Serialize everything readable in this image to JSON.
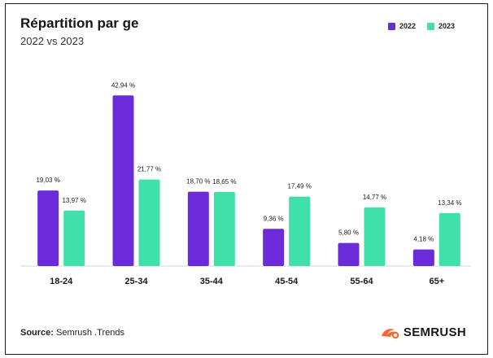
{
  "header": {
    "title": "Répartition par ge",
    "subtitle": "2022 vs 2023"
  },
  "legend": [
    {
      "label": "2022",
      "color": "#6c2bd9"
    },
    {
      "label": "2023",
      "color": "#40e0aa"
    }
  ],
  "footer": {
    "source_label": "Source:",
    "source_value": "Semrush .Trends",
    "brand": "SEMRUSH",
    "brand_icon": "semrush-flame-icon",
    "brand_color": "#ff642d"
  },
  "chart_data": {
    "type": "bar",
    "categories": [
      "18-24",
      "25-34",
      "35-44",
      "45-54",
      "55-64",
      "65+"
    ],
    "series": [
      {
        "name": "2022",
        "values": [
          19.03,
          42.94,
          18.7,
          9.36,
          5.8,
          4.18
        ],
        "labels": [
          "19,03 %",
          "42,94 %",
          "18,70 %",
          "9,36 %",
          "5,80 %",
          "4,18 %"
        ],
        "color": "#6c2bd9"
      },
      {
        "name": "2023",
        "values": [
          13.97,
          21.77,
          18.65,
          17.49,
          14.77,
          13.34
        ],
        "labels": [
          "13,97 %",
          "21,77 %",
          "18,65 %",
          "17,49 %",
          "14,77 %",
          "13,34 %"
        ],
        "color": "#40e0aa"
      }
    ],
    "title": "Répartition par ge",
    "subtitle": "2022 vs 2023",
    "xlabel": "",
    "ylabel": "",
    "ylim": [
      0,
      45
    ],
    "grid": false,
    "legend_position": "top-right"
  }
}
